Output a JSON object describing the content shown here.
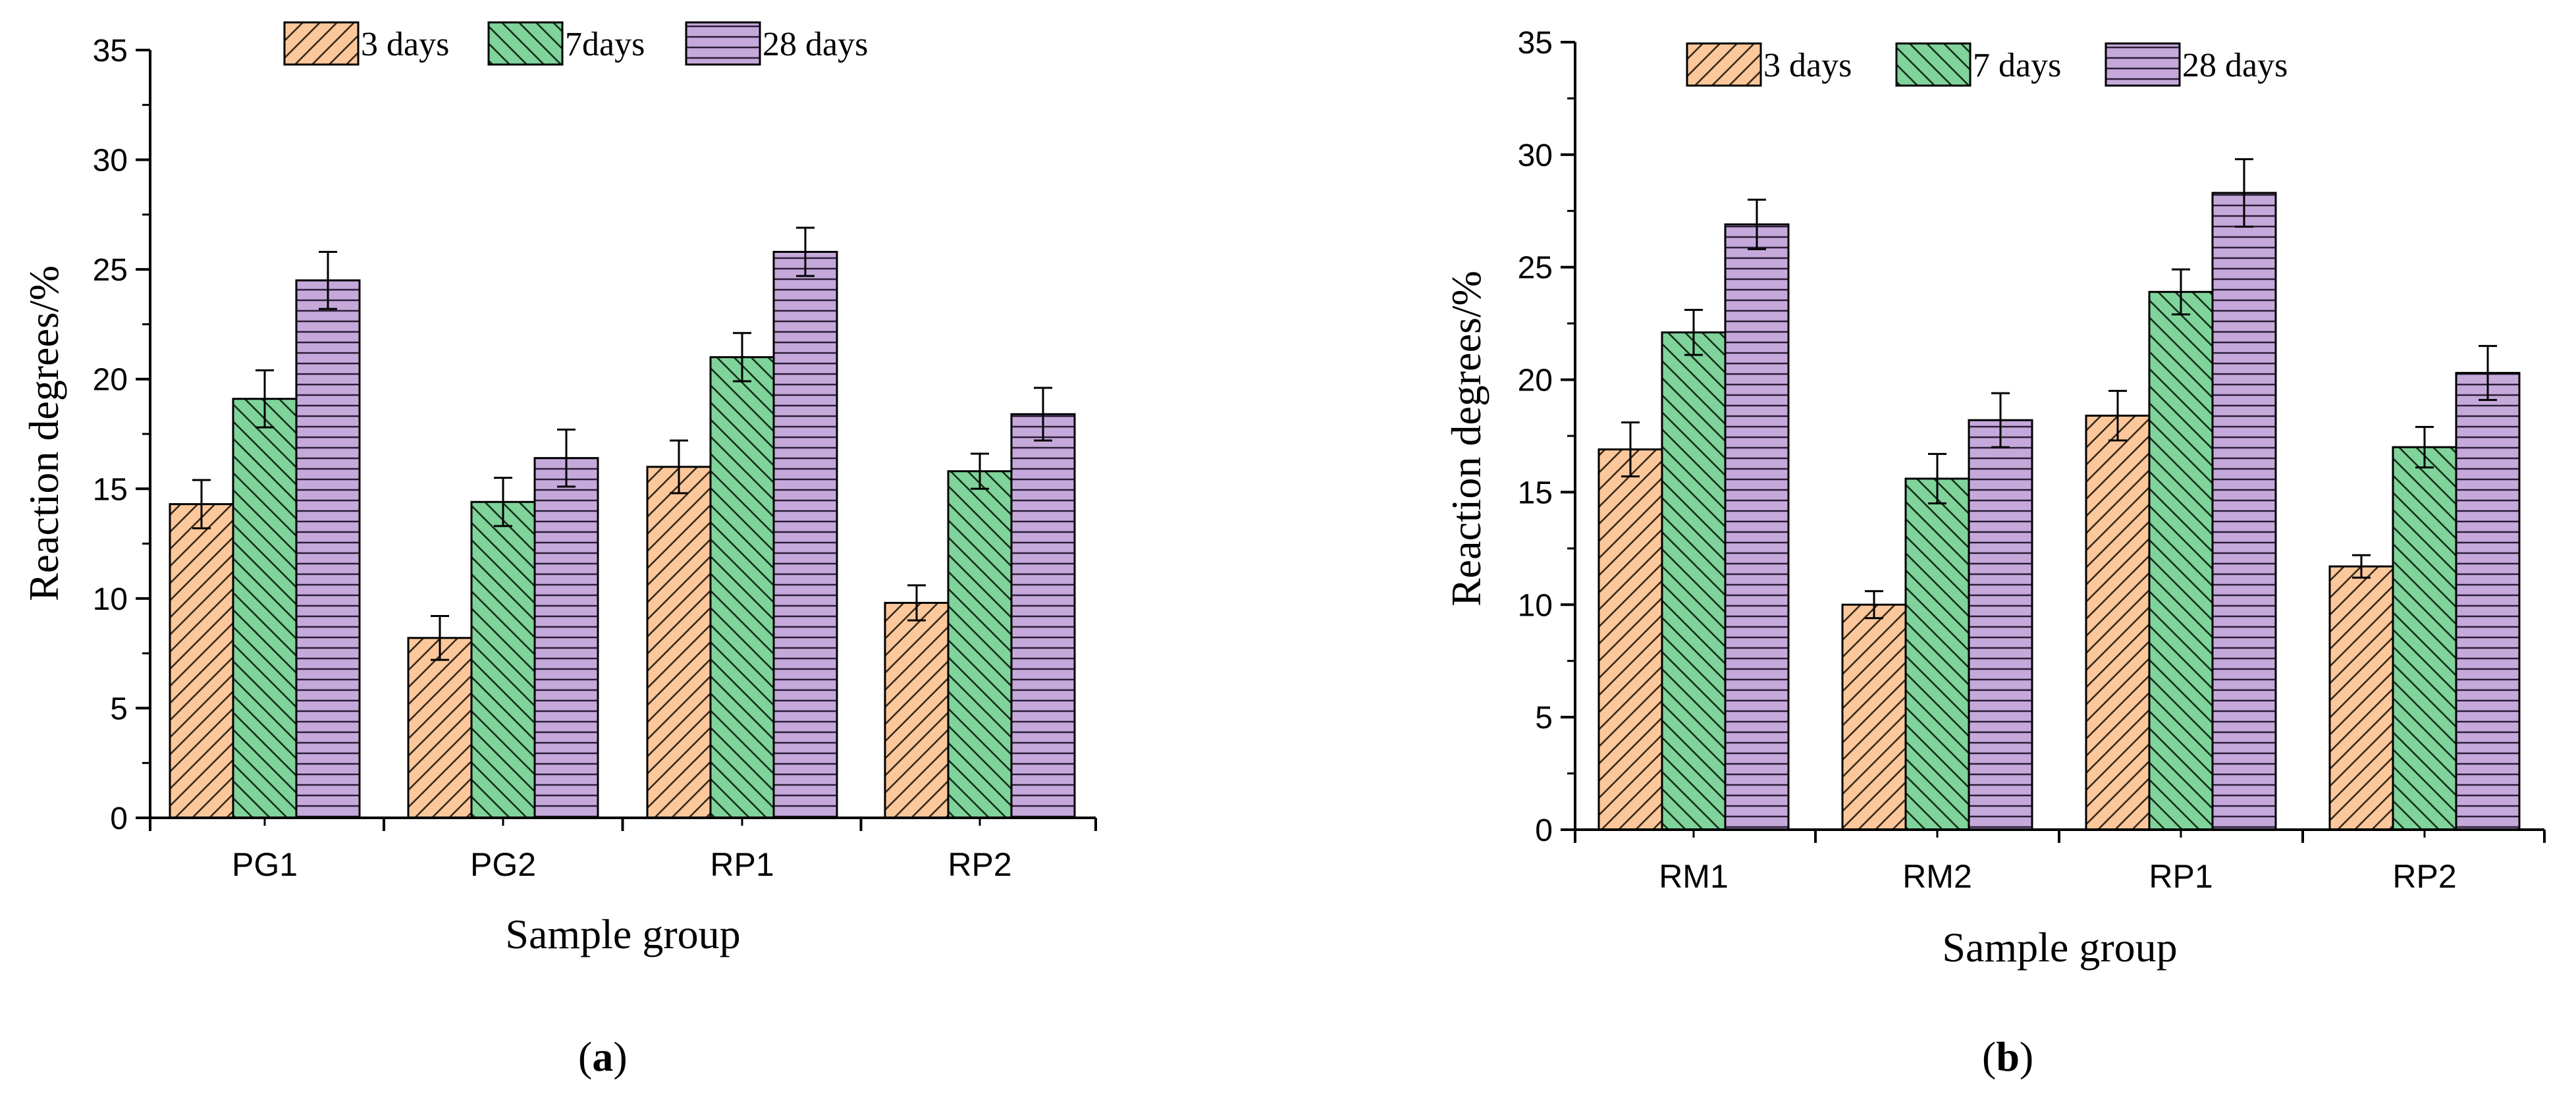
{
  "colors": {
    "3 days": "#fcc89b",
    "7 days": "#7fd39b",
    "28 days": "#c6a9db",
    "axis": "#000000"
  },
  "chart_data": [
    {
      "type": "bar",
      "panel_label": "a",
      "categories": [
        "PG1",
        "PG2",
        "RP1",
        "RP2"
      ],
      "series": [
        {
          "name": "3 days",
          "pattern": "diag-right",
          "values": [
            14.3,
            8.2,
            16.0,
            9.8
          ],
          "errors": [
            1.1,
            1.0,
            1.2,
            0.8
          ]
        },
        {
          "name": "7days",
          "pattern": "diag-left",
          "values": [
            19.1,
            14.4,
            21.0,
            15.8
          ],
          "errors": [
            1.3,
            1.1,
            1.1,
            0.8
          ]
        },
        {
          "name": "28 days",
          "pattern": "horizontal",
          "values": [
            24.5,
            16.4,
            25.8,
            18.4
          ],
          "errors": [
            1.3,
            1.3,
            1.1,
            1.2
          ]
        }
      ],
      "xlabel": "Sample group",
      "ylabel": "Reaction degrees/%",
      "ylim": [
        0,
        35
      ],
      "yticks": [
        0,
        5,
        10,
        15,
        20,
        25,
        30,
        35
      ],
      "legend_position": "top-center",
      "grid": false
    },
    {
      "type": "bar",
      "panel_label": "b",
      "categories": [
        "RM1",
        "RM2",
        "RP1",
        "RP2"
      ],
      "series": [
        {
          "name": "3 days",
          "pattern": "diag-right",
          "values": [
            16.9,
            10.0,
            18.4,
            11.7
          ],
          "errors": [
            1.2,
            0.6,
            1.1,
            0.5
          ]
        },
        {
          "name": "7 days",
          "pattern": "diag-left",
          "values": [
            22.1,
            15.6,
            23.9,
            17.0
          ],
          "errors": [
            1.0,
            1.1,
            1.0,
            0.9
          ]
        },
        {
          "name": "28 days",
          "pattern": "horizontal",
          "values": [
            26.9,
            18.2,
            28.3,
            20.3
          ],
          "errors": [
            1.1,
            1.2,
            1.5,
            1.2
          ]
        }
      ],
      "xlabel": "Sample group",
      "ylabel": "Reaction degrees/%",
      "ylim": [
        0,
        35
      ],
      "yticks": [
        0,
        5,
        10,
        15,
        20,
        25,
        30,
        35
      ],
      "legend_position": "top-center",
      "grid": false
    }
  ]
}
